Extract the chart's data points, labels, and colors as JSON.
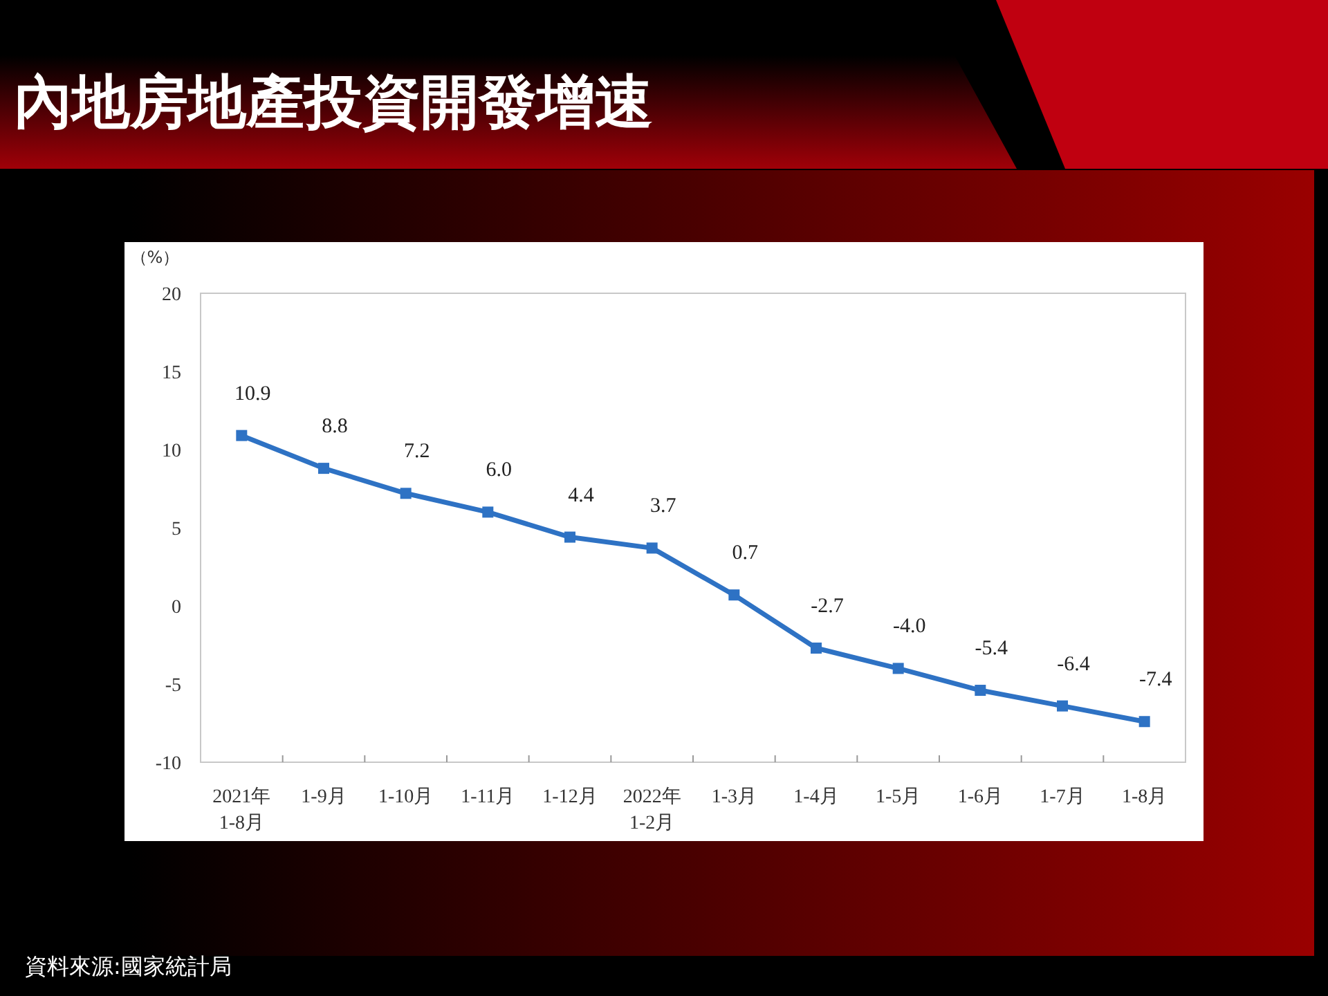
{
  "chart_data": {
    "type": "line",
    "title": "內地房地產投資開發增速",
    "ylabel": "（%）",
    "categories": [
      "2021年\n1-8月",
      "1-9月",
      "1-10月",
      "1-11月",
      "1-12月",
      "2022年\n1-2月",
      "1-3月",
      "1-4月",
      "1-5月",
      "1-6月",
      "1-7月",
      "1-8月"
    ],
    "values": [
      10.9,
      8.8,
      7.2,
      6.0,
      4.4,
      3.7,
      0.7,
      -2.7,
      -4.0,
      -5.4,
      -6.4,
      -7.4
    ],
    "color": "#2e72c4",
    "ylim": [
      -10,
      20
    ],
    "yticks": [
      -10,
      -5,
      0,
      5,
      10,
      15,
      20
    ],
    "value_labels": [
      "10.9",
      "8.8",
      "7.2",
      "6.0",
      "4.4",
      "3.7",
      "0.7",
      "-2.7",
      "-4.0",
      "-5.4",
      "-6.4",
      "-7.4"
    ],
    "marker": "square",
    "line_style": "solid",
    "grid": false,
    "annotations": [
      "資料來源:國家統計局"
    ]
  }
}
